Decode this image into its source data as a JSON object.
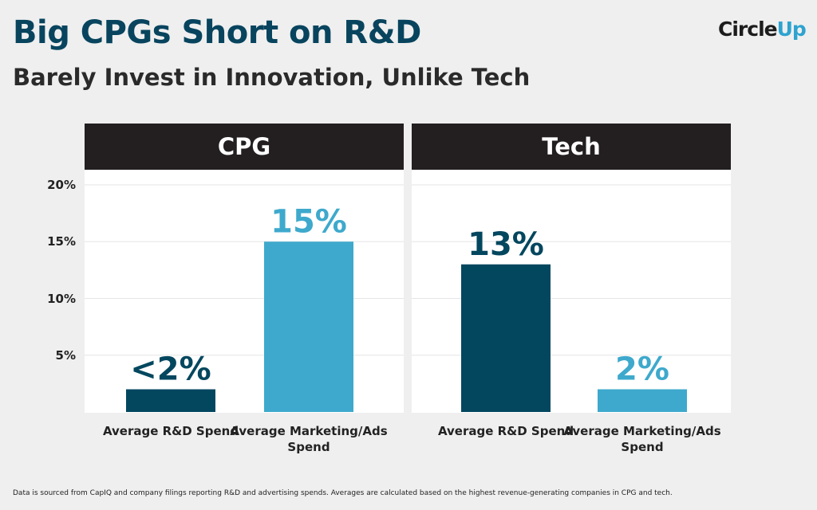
{
  "header": {
    "title": "Big CPGs Short on R&D",
    "subtitle": "Barely Invest in Innovation, Unlike Tech",
    "logo": "CircleUp"
  },
  "footnote": "Data is sourced from CapIQ and company filings reporting R&D and advertising spends. Averages are calculated based on the highest revenue-generating companies in CPG and tech.",
  "colors": {
    "rd": "#03475f",
    "marketing": "#3ea9cc",
    "header_bg": "#231f20"
  },
  "chart_data": {
    "type": "bar",
    "ylim": [
      0,
      20
    ],
    "yticks": [
      "5%",
      "10%",
      "15%",
      "20%"
    ],
    "ytick_values": [
      5,
      10,
      15,
      20
    ],
    "grid": true,
    "panels": [
      {
        "title": "CPG",
        "categories": [
          "Average R&D Spend",
          "Average Marketing/Ads Spend"
        ],
        "values": [
          2,
          15
        ],
        "labels": [
          "<2%",
          "15%"
        ]
      },
      {
        "title": "Tech",
        "categories": [
          "Average R&D Spend",
          "Average Marketing/Ads Spend"
        ],
        "values": [
          13,
          2
        ],
        "labels": [
          "13%",
          "2%"
        ]
      }
    ]
  }
}
